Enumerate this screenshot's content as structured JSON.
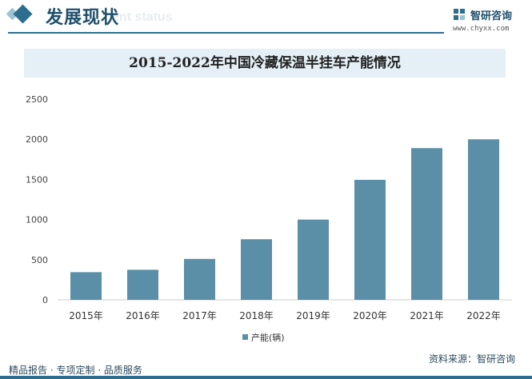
{
  "header": {
    "title": "发展现状",
    "ghost_text": "ent status",
    "logo_name": "智研咨询",
    "logo_url": "www.chyxx.com"
  },
  "footer": {
    "left_text": "精品报告 · 专项定制 · 品质服务",
    "source_text": "资料来源：智研咨询"
  },
  "colors": {
    "bar": "#5b8fa8",
    "accent": "#2d6e8f",
    "title_band": "#e4eff6"
  },
  "chart_data": {
    "type": "bar",
    "title": "2015-2022年中国冷藏保温半挂车产能情况",
    "categories": [
      "2015年",
      "2016年",
      "2017年",
      "2018年",
      "2019年",
      "2020年",
      "2021年",
      "2022年"
    ],
    "series": [
      {
        "name": "产能(辆)",
        "values": [
          345,
          375,
          510,
          755,
          1000,
          1495,
          1890,
          2000
        ]
      }
    ],
    "ylim": [
      0,
      2500
    ],
    "yticks": [
      0,
      500,
      1000,
      1500,
      2000,
      2500
    ],
    "grid": false,
    "legend": "bottom"
  }
}
